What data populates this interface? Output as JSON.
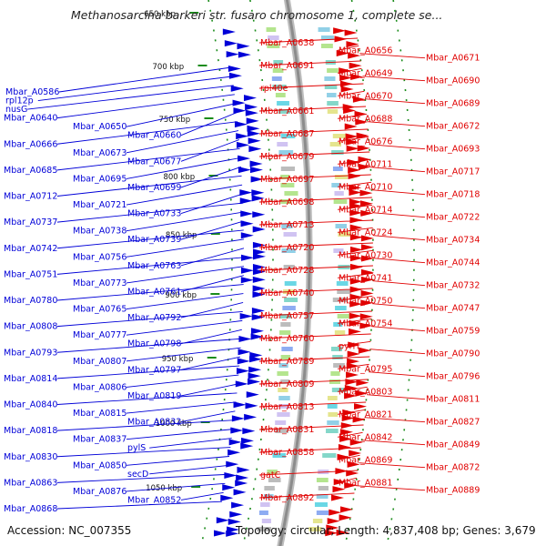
{
  "title": "Methanosarcina barkeri str. fusaro chromosome 1, complete se...",
  "footer": {
    "accession": "Accession: NC_007355",
    "summary": "Topology: circular; Length: 4,837,408 bp; Genes: 3,679"
  },
  "colors": {
    "forward": "#e00000",
    "reverse": "#0000d8",
    "backbone": "#8c8c8c",
    "ticks": "#1a8c1a"
  },
  "ticks": [
    "650 kbp",
    "700 kbp",
    "750 kbp",
    "800 kbp",
    "850 kbp",
    "900 kbp",
    "950 kbp",
    "1000 kbp",
    "1050 kbp"
  ],
  "reverse_labels": [
    "Mbar_A0586",
    "rpl12p",
    "nusG",
    "Mbar_A0640",
    "Mbar_A0650",
    "Mbar_A0660",
    "Mbar_A0666",
    "Mbar_A0673",
    "Mbar_A0677",
    "Mbar_A0685",
    "Mbar_A0695",
    "Mbar_A0699",
    "Mbar_A0712",
    "Mbar_A0721",
    "Mbar_A0733",
    "Mbar_A0737",
    "Mbar_A0738",
    "Mbar_A0739",
    "Mbar_A0742",
    "Mbar_A0756",
    "Mbar_A0763",
    "Mbar_A0751",
    "Mbar_A0773",
    "Mbar_A0761",
    "Mbar_A0780",
    "Mbar_A0765",
    "Mbar_A0792",
    "Mbar_A0808",
    "Mbar_A0777",
    "Mbar_A0798",
    "Mbar_A0793",
    "Mbar_A0807",
    "Mbar_A0797",
    "Mbar_A0814",
    "Mbar_A0806",
    "Mbar_A0819",
    "Mbar_A0840",
    "Mbar_A0815",
    "Mbar_A0832",
    "Mbar_A0818",
    "Mbar_A0837",
    "pylS",
    "Mbar_A0830",
    "Mbar_A0850",
    "secD",
    "Mbar_A0863",
    "Mbar_A0876",
    "Mbar_A0852",
    "Mbar_A0868"
  ],
  "forward_labels": [
    "Mbar_A0638",
    "Mbar_A0656",
    "Mbar_A0671",
    "Mbar_A0691",
    "Mbar_A0649",
    "Mbar_A0690",
    "rpl40e",
    "Mbar_A0670",
    "Mbar_A0689",
    "Mbar_A0661",
    "Mbar_A0688",
    "Mbar_A0672",
    "Mbar_A0687",
    "Mbar_A0676",
    "Mbar_A0693",
    "Mbar_A0679",
    "Mbar_A0711",
    "Mbar_A0717",
    "Mbar_A0697",
    "Mbar_A0710",
    "Mbar_A0718",
    "Mbar_A0698",
    "Mbar_A0714",
    "Mbar_A0722",
    "Mbar_A0713",
    "Mbar_A0724",
    "Mbar_A0734",
    "Mbar_A0720",
    "Mbar_A0730",
    "Mbar_A0744",
    "Mbar_A0728",
    "Mbar_A0741",
    "Mbar_A0732",
    "Mbar_A0740",
    "Mbar_A0750",
    "Mbar_A0747",
    "Mbar_A0757",
    "Mbar_A0754",
    "Mbar_A0759",
    "Mbar_A0760",
    "pyrH",
    "Mbar_A0790",
    "Mbar_A0789",
    "Mbar_A0795",
    "Mbar_A0796",
    "Mbar_A0809",
    "Mbar_A0803",
    "Mbar_A0811",
    "Mbar_A0813",
    "Mbar_A0821",
    "Mbar_A0827",
    "Mbar_A0831",
    "Mbar_A0842",
    "Mbar_A0849",
    "Mbar_A0858",
    "Mbar_A0869",
    "Mbar_A0872",
    "gatC",
    "Mbar_A0881",
    "Mbar_A0889",
    "Mbar_A0892"
  ]
}
